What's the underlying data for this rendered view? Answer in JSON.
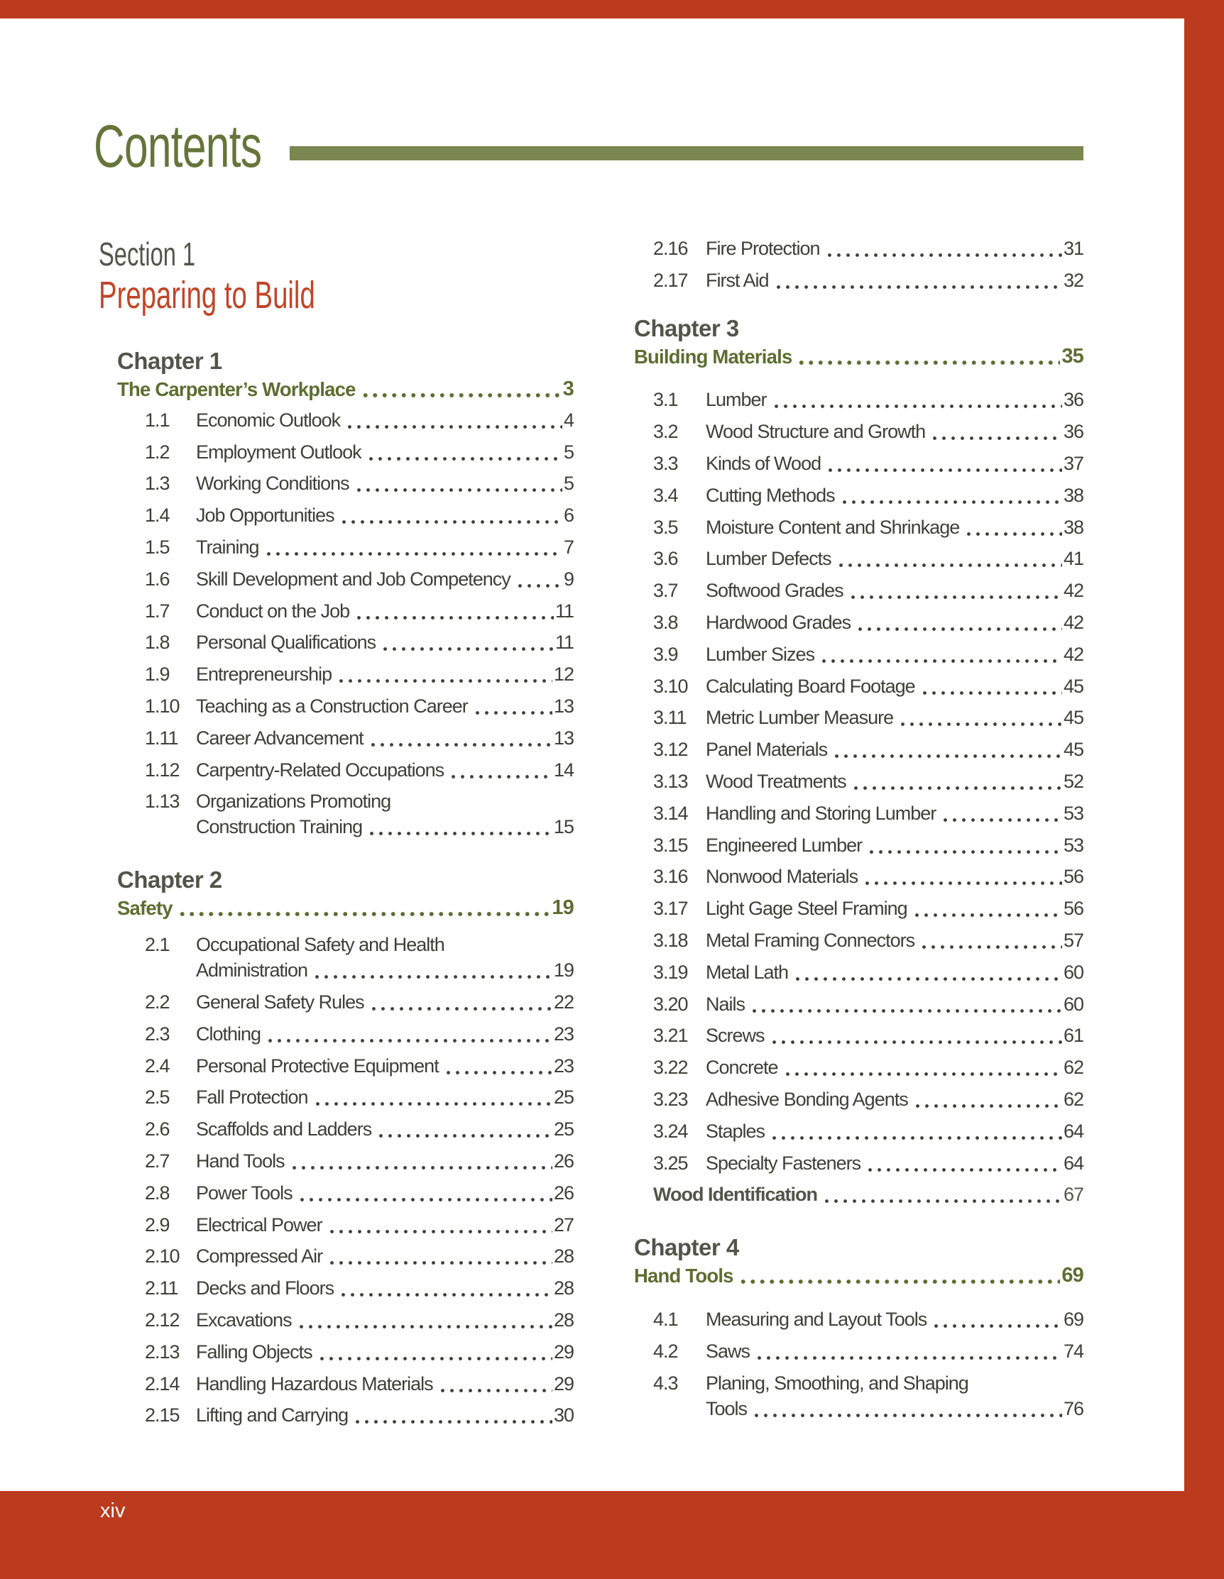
{
  "masthead": {
    "title": "Contents"
  },
  "folio": {
    "page_number": "xiv"
  },
  "colors": {
    "bleed_red": "#BC3A1D",
    "section_red": "#C04526",
    "olive": "#66743A",
    "rule_olive": "#7A8750",
    "toc_olive": "#5E6D31",
    "charcoal": "#53544A",
    "entry_text": "#3F3F39"
  },
  "section": {
    "label": "Section 1",
    "title": "Preparing to Build"
  },
  "toc": {
    "left": {
      "chapters": [
        {
          "label": "Chapter 1",
          "title": "The Carpenter’s Workplace",
          "page": "3",
          "entries_gap": 0,
          "entries": [
            {
              "n": "1.1",
              "t": "Economic Outlook",
              "p": "4"
            },
            {
              "n": "1.2",
              "t": "Employment Outlook",
              "p": "5"
            },
            {
              "n": "1.3",
              "t": "Working Conditions",
              "p": "5"
            },
            {
              "n": "1.4",
              "t": "Job Opportunities",
              "p": "6"
            },
            {
              "n": "1.5",
              "t": "Training",
              "p": "7"
            },
            {
              "n": "1.6",
              "t": "Skill Development and Job Competency",
              "p": "9"
            },
            {
              "n": "1.7",
              "t": "Conduct on the Job",
              "p": "11"
            },
            {
              "n": "1.8",
              "t": "Personal Qualifications",
              "p": "11"
            },
            {
              "n": "1.9",
              "t": "Entrepreneurship",
              "p": "12"
            },
            {
              "n": "1.10",
              "t": "Teaching as a Construction Career",
              "p": "13"
            },
            {
              "n": "1.11",
              "t": "Career Advancement",
              "p": "13"
            },
            {
              "n": "1.12",
              "t": "Carpentry-Related Occupations",
              "p": "14"
            },
            {
              "n": "1.13",
              "t": "Organizations Promoting",
              "t2": "Construction Training",
              "p": "15"
            }
          ]
        },
        {
          "label": "Chapter 2",
          "title": "Safety",
          "page": "19",
          "entries_gap": 8,
          "entries": [
            {
              "n": "2.1",
              "t": "Occupational Safety and Health",
              "t2": "Administration",
              "p": "19"
            },
            {
              "n": "2.2",
              "t": "General Safety Rules",
              "p": "22"
            },
            {
              "n": "2.3",
              "t": "Clothing",
              "p": "23"
            },
            {
              "n": "2.4",
              "t": "Personal Protective Equipment",
              "p": "23"
            },
            {
              "n": "2.5",
              "t": "Fall Protection",
              "p": "25"
            },
            {
              "n": "2.6",
              "t": "Scaffolds and Ladders",
              "p": "25"
            },
            {
              "n": "2.7",
              "t": "Hand Tools",
              "p": "26"
            },
            {
              "n": "2.8",
              "t": "Power Tools",
              "p": "26"
            },
            {
              "n": "2.9",
              "t": "Electrical Power",
              "p": "27"
            },
            {
              "n": "2.10",
              "t": "Compressed Air",
              "p": "28"
            },
            {
              "n": "2.11",
              "t": "Decks and Floors",
              "p": "28"
            },
            {
              "n": "2.12",
              "t": "Excavations",
              "p": "28"
            },
            {
              "n": "2.13",
              "t": "Falling Objects",
              "p": "29"
            },
            {
              "n": "2.14",
              "t": "Handling Hazardous Materials",
              "p": "29"
            },
            {
              "n": "2.15",
              "t": "Lifting and Carrying",
              "p": "30"
            }
          ]
        }
      ]
    },
    "right": {
      "orphan_entries": [
        {
          "n": "2.16",
          "t": "Fire Protection",
          "p": "31"
        },
        {
          "n": "2.17",
          "t": "First Aid",
          "p": "32"
        }
      ],
      "chapters": [
        {
          "label": "Chapter 3",
          "title": "Building Materials",
          "page": "35",
          "entries_gap": 18,
          "entries": [
            {
              "n": "3.1",
              "t": "Lumber",
              "p": "36"
            },
            {
              "n": "3.2",
              "t": "Wood Structure and Growth",
              "p": "36"
            },
            {
              "n": "3.3",
              "t": "Kinds of Wood",
              "p": "37"
            },
            {
              "n": "3.4",
              "t": "Cutting Methods",
              "p": "38"
            },
            {
              "n": "3.5",
              "t": "Moisture Content and Shrinkage",
              "p": "38"
            },
            {
              "n": "3.6",
              "t": "Lumber Defects",
              "p": "41"
            },
            {
              "n": "3.7",
              "t": "Softwood Grades",
              "p": "42"
            },
            {
              "n": "3.8",
              "t": "Hardwood Grades",
              "p": "42"
            },
            {
              "n": "3.9",
              "t": "Lumber Sizes",
              "p": "42"
            },
            {
              "n": "3.10",
              "t": "Calculating Board Footage",
              "p": "45"
            },
            {
              "n": "3.11",
              "t": "Metric Lumber Measure",
              "p": "45"
            },
            {
              "n": "3.12",
              "t": "Panel Materials",
              "p": "45"
            },
            {
              "n": "3.13",
              "t": "Wood Treatments",
              "p": "52"
            },
            {
              "n": "3.14",
              "t": "Handling and Storing Lumber",
              "p": "53"
            },
            {
              "n": "3.15",
              "t": "Engineered Lumber",
              "p": "53"
            },
            {
              "n": "3.16",
              "t": "Nonwood Materials",
              "p": "56"
            },
            {
              "n": "3.17",
              "t": "Light Gage Steel Framing",
              "p": "56"
            },
            {
              "n": "3.18",
              "t": "Metal Framing Connectors",
              "p": "57"
            },
            {
              "n": "3.19",
              "t": "Metal Lath",
              "p": "60"
            },
            {
              "n": "3.20",
              "t": "Nails",
              "p": "60"
            },
            {
              "n": "3.21",
              "t": "Screws",
              "p": "61"
            },
            {
              "n": "3.22",
              "t": "Concrete",
              "p": "62"
            },
            {
              "n": "3.23",
              "t": "Adhesive Bonding Agents",
              "p": "62"
            },
            {
              "n": "3.24",
              "t": "Staples",
              "p": "64"
            },
            {
              "n": "3.25",
              "t": "Specialty Fasteners",
              "p": "64"
            },
            {
              "n": "",
              "t": "Wood Identification",
              "p": "67",
              "emph": true
            }
          ]
        },
        {
          "label": "Chapter 4",
          "title": "Hand Tools",
          "page": "69",
          "entries_gap": 18,
          "entries": [
            {
              "n": "4.1",
              "t": "Measuring and Layout Tools",
              "p": "69"
            },
            {
              "n": "4.2",
              "t": "Saws",
              "p": "74"
            },
            {
              "n": "4.3",
              "t": "Planing, Smoothing, and Shaping",
              "t2": "Tools",
              "p": "76"
            }
          ]
        }
      ]
    }
  }
}
